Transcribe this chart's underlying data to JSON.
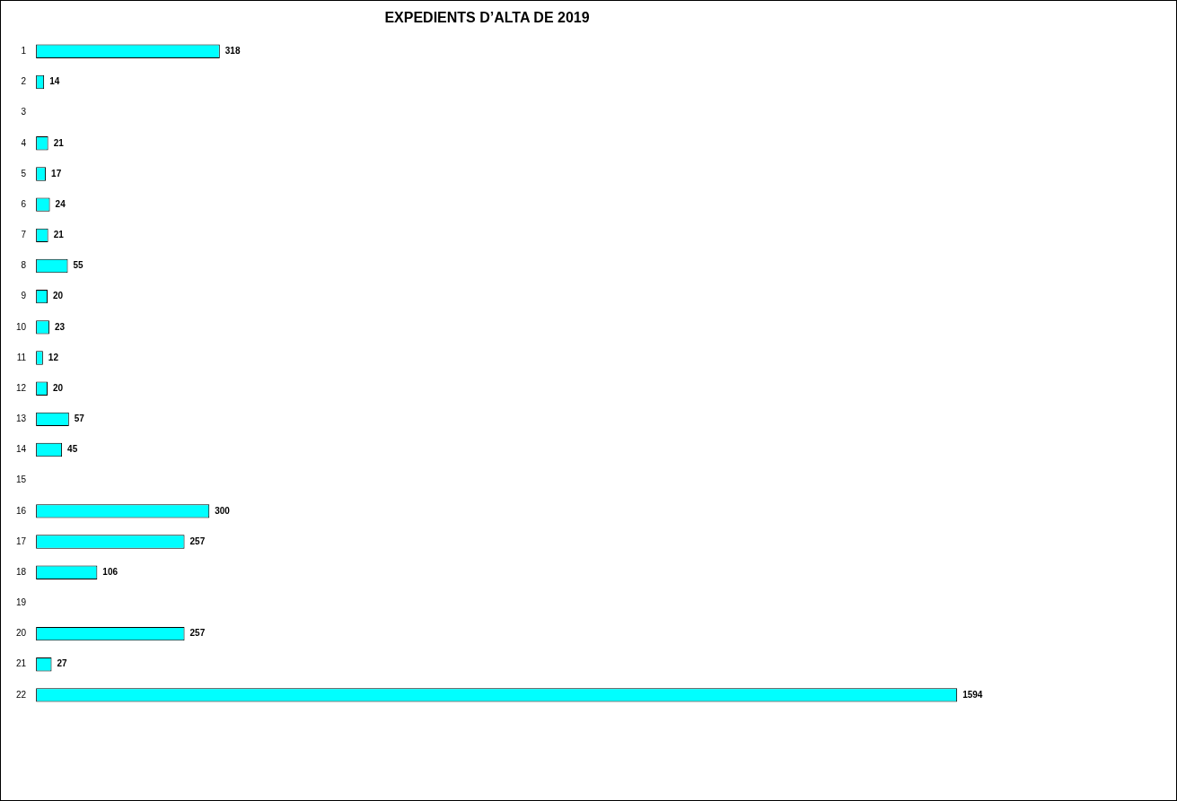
{
  "chart_data": {
    "type": "bar",
    "orientation": "horizontal",
    "title": "EXPEDIENTS D’ALTA DE 2019",
    "categories": [
      "1",
      "2",
      "3",
      "4",
      "5",
      "6",
      "7",
      "8",
      "9",
      "10",
      "11",
      "12",
      "13",
      "14",
      "15",
      "16",
      "17",
      "18",
      "19",
      "20",
      "21",
      "22"
    ],
    "values": [
      318,
      14,
      null,
      21,
      17,
      24,
      21,
      55,
      20,
      23,
      12,
      20,
      57,
      45,
      null,
      300,
      257,
      106,
      null,
      257,
      27,
      1594
    ],
    "color": "#00ffff",
    "data_labels": true,
    "legend": false
  }
}
